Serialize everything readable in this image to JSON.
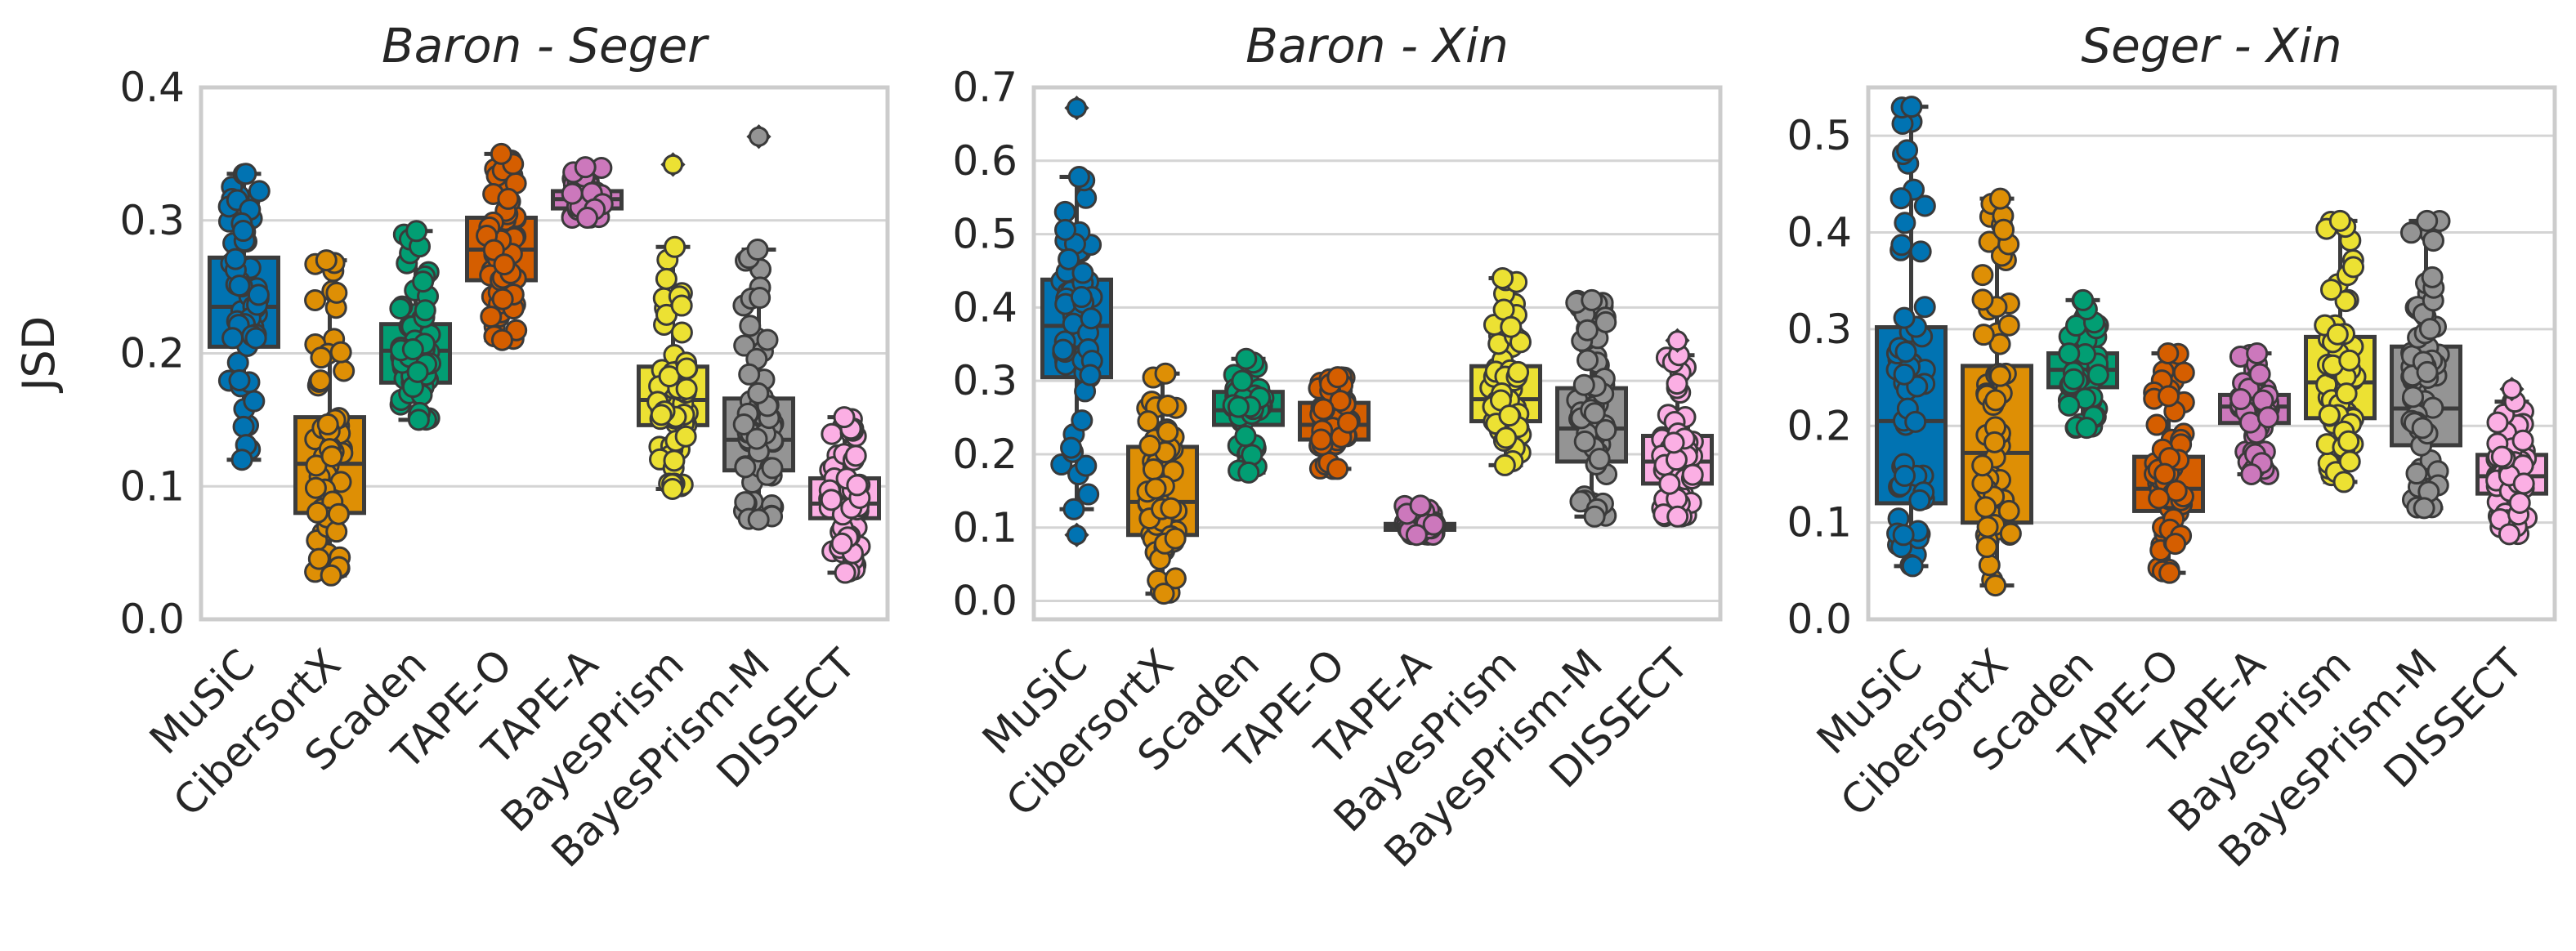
{
  "chart_data": [
    {
      "type": "box",
      "title": "Baron - Seger",
      "ylabel": "JSD",
      "ylim": [
        0.0,
        0.4
      ],
      "yticks": [
        "0.0",
        "0.1",
        "0.2",
        "0.3",
        "0.4"
      ],
      "grid": true,
      "categories": [
        "MuSiC",
        "CibersortX",
        "Scaden",
        "TAPE-O",
        "TAPE-A",
        "BayesPrism",
        "BayesPrism-M",
        "DISSECT"
      ],
      "boxes": [
        {
          "min": 0.12,
          "q1": 0.205,
          "median": 0.235,
          "q3": 0.272,
          "max": 0.335,
          "outliers": []
        },
        {
          "min": 0.033,
          "q1": 0.08,
          "median": 0.117,
          "q3": 0.152,
          "max": 0.27,
          "outliers": []
        },
        {
          "min": 0.15,
          "q1": 0.178,
          "median": 0.202,
          "q3": 0.222,
          "max": 0.292,
          "outliers": []
        },
        {
          "min": 0.21,
          "q1": 0.255,
          "median": 0.278,
          "q3": 0.302,
          "max": 0.35,
          "outliers": []
        },
        {
          "min": 0.302,
          "q1": 0.309,
          "median": 0.316,
          "q3": 0.322,
          "max": 0.34,
          "outliers": []
        },
        {
          "min": 0.098,
          "q1": 0.146,
          "median": 0.165,
          "q3": 0.19,
          "max": 0.28,
          "outliers": [
            0.342
          ]
        },
        {
          "min": 0.075,
          "q1": 0.112,
          "median": 0.135,
          "q3": 0.166,
          "max": 0.278,
          "outliers": [
            0.363
          ]
        },
        {
          "min": 0.035,
          "q1": 0.076,
          "median": 0.087,
          "q3": 0.106,
          "max": 0.152,
          "outliers": []
        }
      ]
    },
    {
      "type": "box",
      "title": "Baron - Xin",
      "ylabel": "",
      "ylim": [
        -0.025,
        0.7
      ],
      "yticks": [
        "0.0",
        "0.1",
        "0.2",
        "0.3",
        "0.4",
        "0.5",
        "0.6",
        "0.7"
      ],
      "grid": true,
      "categories": [
        "MuSiC",
        "CibersortX",
        "Scaden",
        "TAPE-O",
        "TAPE-A",
        "BayesPrism",
        "BayesPrism-M",
        "DISSECT"
      ],
      "boxes": [
        {
          "min": 0.125,
          "q1": 0.305,
          "median": 0.375,
          "q3": 0.438,
          "max": 0.578,
          "outliers": [
            0.09,
            0.672
          ]
        },
        {
          "min": 0.01,
          "q1": 0.09,
          "median": 0.135,
          "q3": 0.21,
          "max": 0.31,
          "outliers": []
        },
        {
          "min": 0.175,
          "q1": 0.24,
          "median": 0.26,
          "q3": 0.285,
          "max": 0.33,
          "outliers": []
        },
        {
          "min": 0.18,
          "q1": 0.22,
          "median": 0.24,
          "q3": 0.27,
          "max": 0.305,
          "outliers": []
        },
        {
          "min": 0.09,
          "q1": 0.097,
          "median": 0.101,
          "q3": 0.105,
          "max": 0.13,
          "outliers": []
        },
        {
          "min": 0.185,
          "q1": 0.245,
          "median": 0.275,
          "q3": 0.32,
          "max": 0.44,
          "outliers": []
        },
        {
          "min": 0.115,
          "q1": 0.19,
          "median": 0.235,
          "q3": 0.29,
          "max": 0.41,
          "outliers": []
        },
        {
          "min": 0.115,
          "q1": 0.16,
          "median": 0.19,
          "q3": 0.225,
          "max": 0.335,
          "outliers": [
            0.355
          ]
        }
      ]
    },
    {
      "type": "box",
      "title": "Seger - Xin",
      "ylabel": "",
      "ylim": [
        0.0,
        0.55
      ],
      "yticks": [
        "0.0",
        "0.1",
        "0.2",
        "0.3",
        "0.4",
        "0.5"
      ],
      "grid": true,
      "categories": [
        "MuSiC",
        "CibersortX",
        "Scaden",
        "TAPE-O",
        "TAPE-A",
        "BayesPrism",
        "BayesPrism-M",
        "DISSECT"
      ],
      "boxes": [
        {
          "min": 0.055,
          "q1": 0.12,
          "median": 0.205,
          "q3": 0.302,
          "max": 0.53,
          "outliers": []
        },
        {
          "min": 0.035,
          "q1": 0.1,
          "median": 0.172,
          "q3": 0.262,
          "max": 0.435,
          "outliers": []
        },
        {
          "min": 0.198,
          "q1": 0.24,
          "median": 0.258,
          "q3": 0.275,
          "max": 0.33,
          "outliers": []
        },
        {
          "min": 0.048,
          "q1": 0.112,
          "median": 0.135,
          "q3": 0.168,
          "max": 0.275,
          "outliers": []
        },
        {
          "min": 0.15,
          "q1": 0.203,
          "median": 0.22,
          "q3": 0.232,
          "max": 0.275,
          "outliers": []
        },
        {
          "min": 0.142,
          "q1": 0.208,
          "median": 0.245,
          "q3": 0.292,
          "max": 0.412,
          "outliers": []
        },
        {
          "min": 0.115,
          "q1": 0.18,
          "median": 0.218,
          "q3": 0.282,
          "max": 0.412,
          "outliers": []
        },
        {
          "min": 0.088,
          "q1": 0.13,
          "median": 0.148,
          "q3": 0.17,
          "max": 0.225,
          "outliers": [
            0.238
          ]
        }
      ]
    }
  ],
  "colors": {
    "MuSiC": "#0173b2",
    "CibersortX": "#de8f05",
    "Scaden": "#029e73",
    "TAPE-O": "#d55e00",
    "TAPE-A": "#cc78bc",
    "BayesPrism": "#ece133",
    "BayesPrism-M": "#949494",
    "DISSECT": "#fbafe4",
    "grid": "#d4d4d4",
    "frame": "#cccccc",
    "box_edge": "#3c3c3c"
  }
}
